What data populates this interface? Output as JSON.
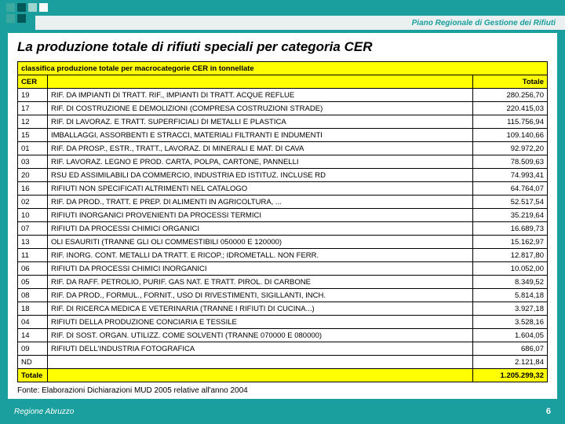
{
  "header": {
    "title": "Piano Regionale di Gestione dei Rifiuti"
  },
  "main": {
    "title": "La produzione totale di rifiuti speciali per categoria CER",
    "table_caption": "classifica produzione totale per macrocategorie CER in tonnellate",
    "columns": {
      "cer": "CER",
      "desc": "",
      "total": "Totale"
    },
    "rows": [
      {
        "cer": "19",
        "desc": "RIF. DA IMPIANTI DI TRATT. RIF., IMPIANTI DI TRATT. ACQUE REFLUE",
        "total": "280.256,70"
      },
      {
        "cer": "17",
        "desc": "RIF. DI COSTRUZIONE E DEMOLIZIONI (COMPRESA COSTRUZIONI STRADE)",
        "total": "220.415,03"
      },
      {
        "cer": "12",
        "desc": "RIF. DI LAVORAZ. E TRATT. SUPERFICIALI DI METALLI E PLASTICA",
        "total": "115.756,94"
      },
      {
        "cer": "15",
        "desc": "IMBALLAGGI, ASSORBENTI E STRACCI, MATERIALI FILTRANTI E INDUMENTI",
        "total": "109.140,66"
      },
      {
        "cer": "01",
        "desc": "RIF. DA PROSP., ESTR., TRATT., LAVORAZ. DI MINERALI E MAT. DI CAVA",
        "total": "92.972,20"
      },
      {
        "cer": "03",
        "desc": "RIF. LAVORAZ. LEGNO E PROD. CARTA, POLPA, CARTONE, PANNELLI",
        "total": "78.509,63"
      },
      {
        "cer": "20",
        "desc": "RSU ED ASSIMILABILI DA COMMERCIO, INDUSTRIA ED ISTITUZ. INCLUSE RD",
        "total": "74.993,41"
      },
      {
        "cer": "16",
        "desc": "RIFIUTI NON SPECIFICATI ALTRIMENTI NEL CATALOGO",
        "total": "64.764,07"
      },
      {
        "cer": "02",
        "desc": "RIF. DA PROD., TRATT. E PREP. DI ALIMENTI IN AGRICOLTURA, ...",
        "total": "52.517,54"
      },
      {
        "cer": "10",
        "desc": "RIFIUTI INORGANICI PROVENIENTI DA PROCESSI TERMICI",
        "total": "35.219,64"
      },
      {
        "cer": "07",
        "desc": "RIFIUTI DA PROCESSI CHIMICI ORGANICI",
        "total": "16.689,73"
      },
      {
        "cer": "13",
        "desc": "OLI ESAURITI (TRANNE GLI OLI COMMESTIBILI 050000 E 120000)",
        "total": "15.162,97"
      },
      {
        "cer": "11",
        "desc": "RIF. INORG. CONT. METALLI DA TRATT. E RICOP.; IDROMETALL. NON FERR.",
        "total": "12.817,80"
      },
      {
        "cer": "06",
        "desc": "RIFIUTI DA PROCESSI CHIMICI INORGANICI",
        "total": "10.052,00"
      },
      {
        "cer": "05",
        "desc": "RIF. DA RAFF. PETROLIO, PURIF. GAS NAT. E TRATT. PIROL. DI CARBONE",
        "total": "8.349,52"
      },
      {
        "cer": "08",
        "desc": "RIF. DA PROD., FORMUL., FORNIT., USO DI RIVESTIMENTI, SIGILLANTI, INCH.",
        "total": "5.814,18"
      },
      {
        "cer": "18",
        "desc": "RIF. DI RICERCA MEDICA E VETERINARIA (TRANNE I RIFIUTI DI CUCINA...)",
        "total": "3.927,18"
      },
      {
        "cer": "04",
        "desc": "RIFIUTI DELLA PRODUZIONE CONCIARIA E TESSILE",
        "total": "3.528,16"
      },
      {
        "cer": "14",
        "desc": "RIF. DI SOST. ORGAN. UTILIZZ. COME SOLVENTI (TRANNE 070000 E 080000)",
        "total": "1.604,05"
      },
      {
        "cer": "09",
        "desc": "RIFIUTI DELL'INDUSTRIA FOTOGRAFICA",
        "total": "686,07"
      },
      {
        "cer": "ND",
        "desc": "",
        "total": "2.121,84"
      }
    ],
    "total_row": {
      "label": "Totale",
      "value": "1.205.299,32"
    },
    "source": "Fonte: Elaborazioni Dichiarazioni MUD 2005 relative all'anno 2004"
  },
  "footer": {
    "left": "Regione Abruzzo",
    "page": "6"
  },
  "styling": {
    "background_color": "#1a9e9e",
    "highlight_color": "#ffff00",
    "content_bg": "#ffffff",
    "font_family": "Arial",
    "title_fontsize": 17,
    "table_fontsize": 9.5
  }
}
